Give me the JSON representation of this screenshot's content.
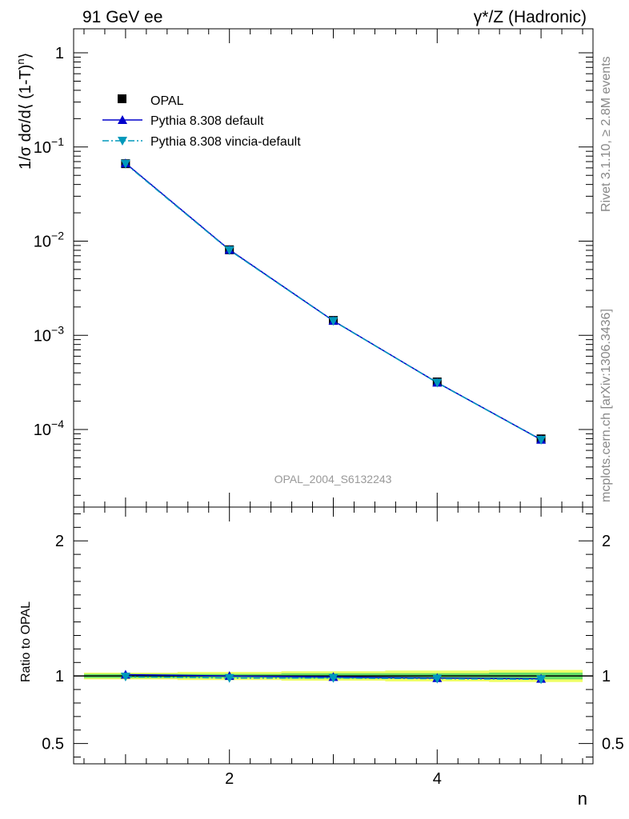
{
  "header": {
    "left": "91 GeV ee",
    "right": "γ*/Z (Hadronic)"
  },
  "side": {
    "rivet": "Rivet 3.1.10, ≥ 2.8M events",
    "mcplots": "mcplots.cern.ch [arXiv:1306.3436]"
  },
  "watermark": "OPAL_2004_S6132243",
  "chart_data": [
    {
      "type": "scatter",
      "title": "",
      "xlabel": "n",
      "ylabel": "1/σ dσ/d⟨ (1-T)ⁿ⟩",
      "ylabel_parts": {
        "main": "1/σ dσ/d⟨ (1-T)",
        "sup": "n",
        "close": "⟩"
      },
      "yscale": "log",
      "xlim": [
        0.5,
        5.5
      ],
      "ylim": [
        1.5e-05,
        1.8
      ],
      "xticks": [
        2,
        4
      ],
      "yticks": [
        {
          "value": 1,
          "base": "1",
          "exp": ""
        },
        {
          "value": 0.1,
          "base": "10",
          "exp": "−1"
        },
        {
          "value": 0.01,
          "base": "10",
          "exp": "−2"
        },
        {
          "value": 0.001,
          "base": "10",
          "exp": "−3"
        },
        {
          "value": 0.0001,
          "base": "10",
          "exp": "−4"
        }
      ],
      "legend_position": "top-left",
      "series": [
        {
          "name": "OPAL",
          "color": "#000000",
          "marker": "square",
          "x": [
            1,
            2,
            3,
            4,
            5
          ],
          "y": [
            0.0665,
            0.0081,
            0.00144,
            0.00032,
            7.95e-05
          ]
        },
        {
          "name": "Pythia 8.308 default",
          "color": "#0000cc",
          "marker": "triangle-up",
          "line": "solid",
          "x": [
            1,
            2,
            3,
            4,
            5
          ],
          "y": [
            0.0672,
            0.0081,
            0.00143,
            0.000315,
            7.8e-05
          ]
        },
        {
          "name": "Pythia 8.308 vincia-default",
          "color": "#0099bb",
          "marker": "triangle-down",
          "line": "dashdot",
          "x": [
            1,
            2,
            3,
            4,
            5
          ],
          "y": [
            0.0663,
            0.008,
            0.00142,
            0.000314,
            7.75e-05
          ]
        }
      ]
    },
    {
      "type": "line",
      "title": "",
      "xlabel": "n",
      "ylabel": "Ratio to OPAL",
      "xlim": [
        0.5,
        5.5
      ],
      "ylim": [
        0.35,
        2.25
      ],
      "yticks": [
        {
          "value": 2,
          "label": "2"
        },
        {
          "value": 1,
          "label": "1"
        },
        {
          "value": 0.5,
          "label": "0.5"
        }
      ],
      "xticks": [
        2,
        4
      ],
      "band": {
        "x": [
          0.6,
          1.5,
          2.5,
          3.5,
          4.5,
          5.4
        ],
        "inner": [
          0.015,
          0.015,
          0.02,
          0.02,
          0.025,
          0.03
        ],
        "outer": [
          0.025,
          0.03,
          0.035,
          0.04,
          0.045,
          0.055
        ],
        "inner_color": "#66dd66",
        "outer_color": "#eeff66"
      },
      "series": [
        {
          "name": "Pythia 8.308 default",
          "color": "#0000cc",
          "x": [
            1,
            2,
            3,
            4,
            5
          ],
          "y": [
            1.01,
            1.0,
            0.993,
            0.985,
            0.98
          ]
        },
        {
          "name": "Pythia 8.308 vincia-default",
          "color": "#0099bb",
          "x": [
            1,
            2,
            3,
            4,
            5
          ],
          "y": [
            0.995,
            0.985,
            0.985,
            0.98,
            0.975
          ]
        }
      ]
    }
  ]
}
